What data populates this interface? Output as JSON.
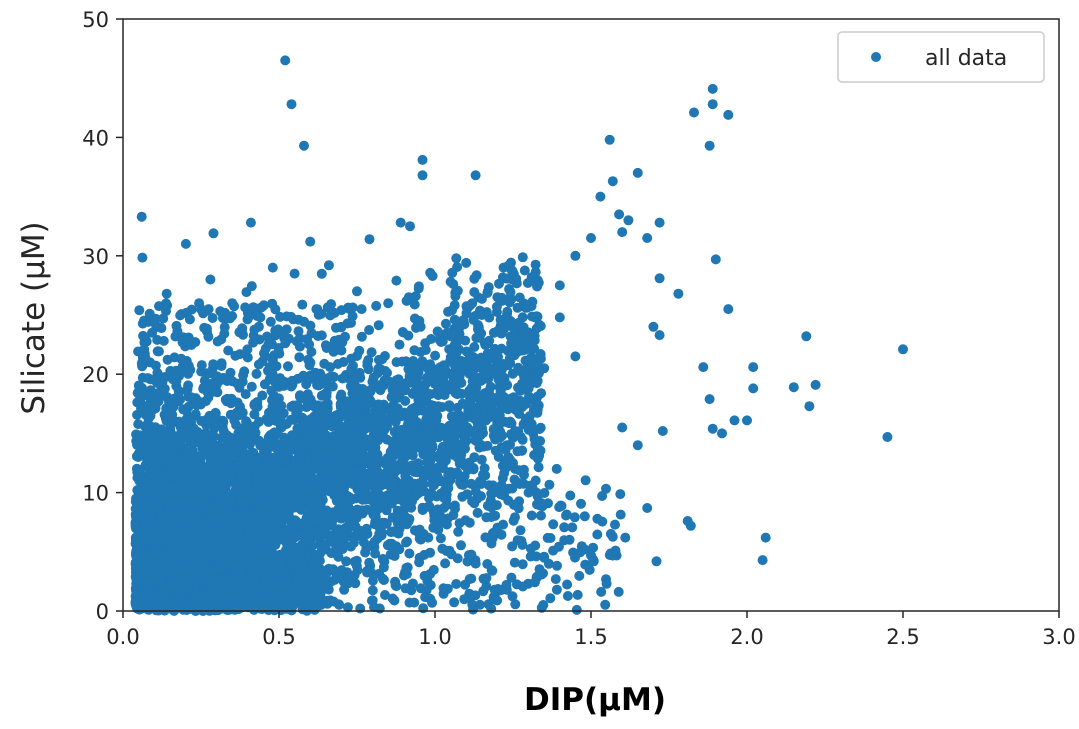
{
  "chart_data": {
    "type": "scatter",
    "title": "",
    "xlabel": "DIP(μM)",
    "ylabel": "Silicate (μM)",
    "xlim": [
      0,
      3.0
    ],
    "ylim": [
      0,
      50
    ],
    "xticks": [
      "0.0",
      "0.5",
      "1.0",
      "1.5",
      "2.0",
      "2.5",
      "3.0"
    ],
    "yticks": [
      "0",
      "10",
      "20",
      "30",
      "40",
      "50"
    ],
    "grid": false,
    "legend_position": "top-right",
    "color": "#1f77b4",
    "series": [
      {
        "name": "all data",
        "points": [
          [
            0.52,
            46.5
          ],
          [
            0.54,
            42.8
          ],
          [
            0.58,
            39.3
          ],
          [
            0.96,
            38.1
          ],
          [
            0.96,
            36.8
          ],
          [
            1.13,
            36.8
          ],
          [
            0.06,
            33.3
          ],
          [
            0.41,
            32.8
          ],
          [
            0.29,
            31.9
          ],
          [
            0.89,
            32.8
          ],
          [
            0.92,
            32.5
          ],
          [
            0.79,
            31.4
          ],
          [
            1.89,
            44.1
          ],
          [
            1.89,
            42.8
          ],
          [
            1.94,
            41.9
          ],
          [
            1.83,
            42.1
          ],
          [
            1.88,
            39.3
          ],
          [
            1.56,
            39.8
          ],
          [
            1.57,
            36.3
          ],
          [
            1.65,
            37.0
          ],
          [
            1.53,
            35.0
          ],
          [
            1.59,
            33.5
          ],
          [
            1.62,
            33.0
          ],
          [
            1.6,
            32.0
          ],
          [
            1.68,
            31.5
          ],
          [
            1.72,
            32.8
          ],
          [
            1.9,
            29.7
          ],
          [
            1.72,
            28.1
          ],
          [
            1.78,
            26.8
          ],
          [
            1.94,
            25.5
          ],
          [
            1.7,
            24.0
          ],
          [
            1.72,
            23.3
          ],
          [
            2.5,
            22.1
          ],
          [
            2.19,
            23.2
          ],
          [
            2.22,
            19.1
          ],
          [
            2.15,
            18.9
          ],
          [
            2.2,
            17.3
          ],
          [
            2.02,
            20.6
          ],
          [
            2.02,
            18.8
          ],
          [
            1.86,
            20.6
          ],
          [
            1.88,
            17.9
          ],
          [
            1.96,
            16.1
          ],
          [
            2.0,
            16.1
          ],
          [
            1.89,
            15.4
          ],
          [
            1.92,
            15.0
          ],
          [
            2.45,
            14.7
          ],
          [
            1.73,
            15.2
          ],
          [
            1.65,
            14.0
          ],
          [
            1.6,
            15.5
          ],
          [
            2.06,
            6.2
          ],
          [
            2.05,
            4.3
          ],
          [
            1.81,
            7.6
          ],
          [
            1.82,
            7.2
          ],
          [
            1.71,
            4.2
          ],
          [
            1.61,
            6.2
          ],
          [
            1.55,
            2.3
          ],
          [
            1.18,
            0.2
          ],
          [
            1.23,
            1.8
          ],
          [
            1.35,
            4.5
          ],
          [
            1.48,
            8.0
          ],
          [
            1.39,
            12.0
          ],
          [
            1.3,
            10.0
          ],
          [
            1.25,
            12.5
          ],
          [
            1.48,
            5.2
          ],
          [
            1.5,
            4.7
          ],
          [
            1.68,
            8.7
          ],
          [
            0.14,
            26.8
          ],
          [
            0.1,
            24.5
          ],
          [
            0.28,
            28.0
          ],
          [
            0.6,
            31.2
          ],
          [
            0.66,
            29.2
          ],
          [
            0.48,
            29.0
          ],
          [
            0.7,
            22.0
          ],
          [
            1.1,
            29.4
          ],
          [
            1.22,
            29.0
          ],
          [
            1.32,
            28.2
          ],
          [
            1.4,
            27.5
          ],
          [
            1.45,
            30.0
          ],
          [
            1.5,
            31.5
          ],
          [
            1.4,
            24.8
          ],
          [
            1.15,
            25.0
          ],
          [
            1.08,
            24.0
          ],
          [
            0.35,
            26.0
          ],
          [
            0.2,
            23.0
          ],
          [
            0.75,
            27.0
          ],
          [
            0.85,
            26.0
          ],
          [
            0.95,
            24.5
          ],
          [
            1.28,
            22.0
          ],
          [
            1.35,
            20.5
          ],
          [
            1.45,
            21.5
          ],
          [
            0.55,
            28.5
          ],
          [
            0.62,
            25.5
          ],
          [
            0.44,
            24.8
          ],
          [
            0.25,
            25.5
          ],
          [
            1.05,
            27.8
          ],
          [
            1.2,
            26.5
          ]
        ]
      }
    ],
    "dense_region": {
      "description_points_seed": 1337,
      "x_range": [
        0.04,
        1.4
      ],
      "y_range": [
        0,
        25
      ]
    }
  }
}
